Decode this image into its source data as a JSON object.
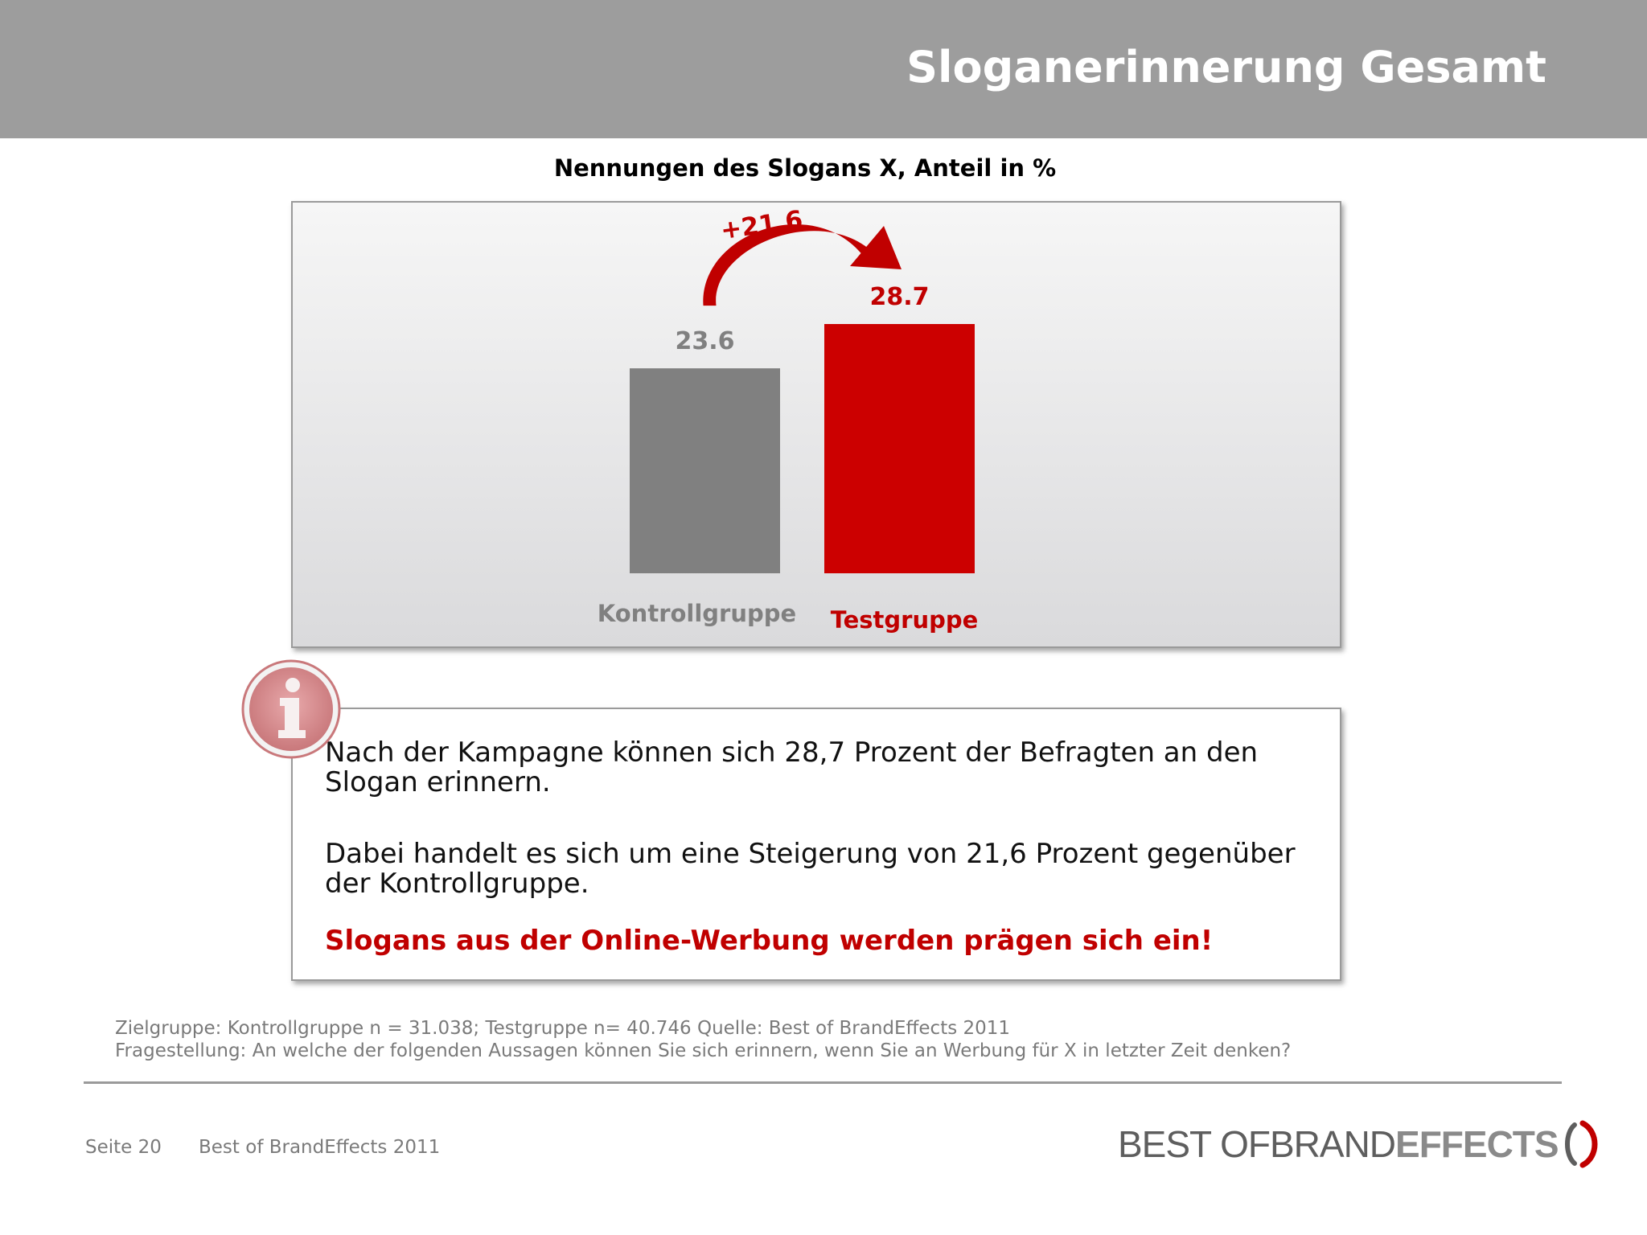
{
  "header": {
    "title": "Sloganerinnerung Gesamt"
  },
  "chart_data": {
    "type": "bar",
    "title": "Nennungen des Slogans X, Anteil in %",
    "categories": [
      "Kontrollgruppe",
      "Testgruppe"
    ],
    "values": [
      23.6,
      28.7
    ],
    "value_labels": [
      "23.6",
      "28.7"
    ],
    "bar_colors": [
      "#808080",
      "#cc0000"
    ],
    "label_colors": [
      "#808080",
      "#c00000"
    ],
    "annotation": "+21,6",
    "annotation_color": "#c00000",
    "ylim": [
      0,
      28.7
    ],
    "grid": false,
    "legend": "none"
  },
  "info": {
    "p1": "Nach der Kampagne können sich 28,7 Prozent der Befragten an den Slogan erinnern.",
    "p2": "Dabei handelt es sich um eine Steigerung von 21,6 Prozent gegenüber der Kontrollgruppe.",
    "p3": "Slogans aus der Online-Werbung werden prägen sich ein!",
    "icon": "info-icon"
  },
  "footnote": {
    "line1": "Zielgruppe: Kontrollgruppe n = 31.038; Testgruppe n= 40.746 Quelle: Best of BrandEffects 2011",
    "line2": "Fragestellung: An welche der folgenden Aussagen können Sie sich erinnern, wenn Sie an Werbung für X in letzter Zeit denken?"
  },
  "footer": {
    "page": "Seite 20",
    "source": "Best of BrandEffects 2011",
    "logo": {
      "part1": "BEST OF ",
      "part2": "BRAND",
      "part3": "EFFECTS",
      "accent": "#c00000"
    }
  }
}
